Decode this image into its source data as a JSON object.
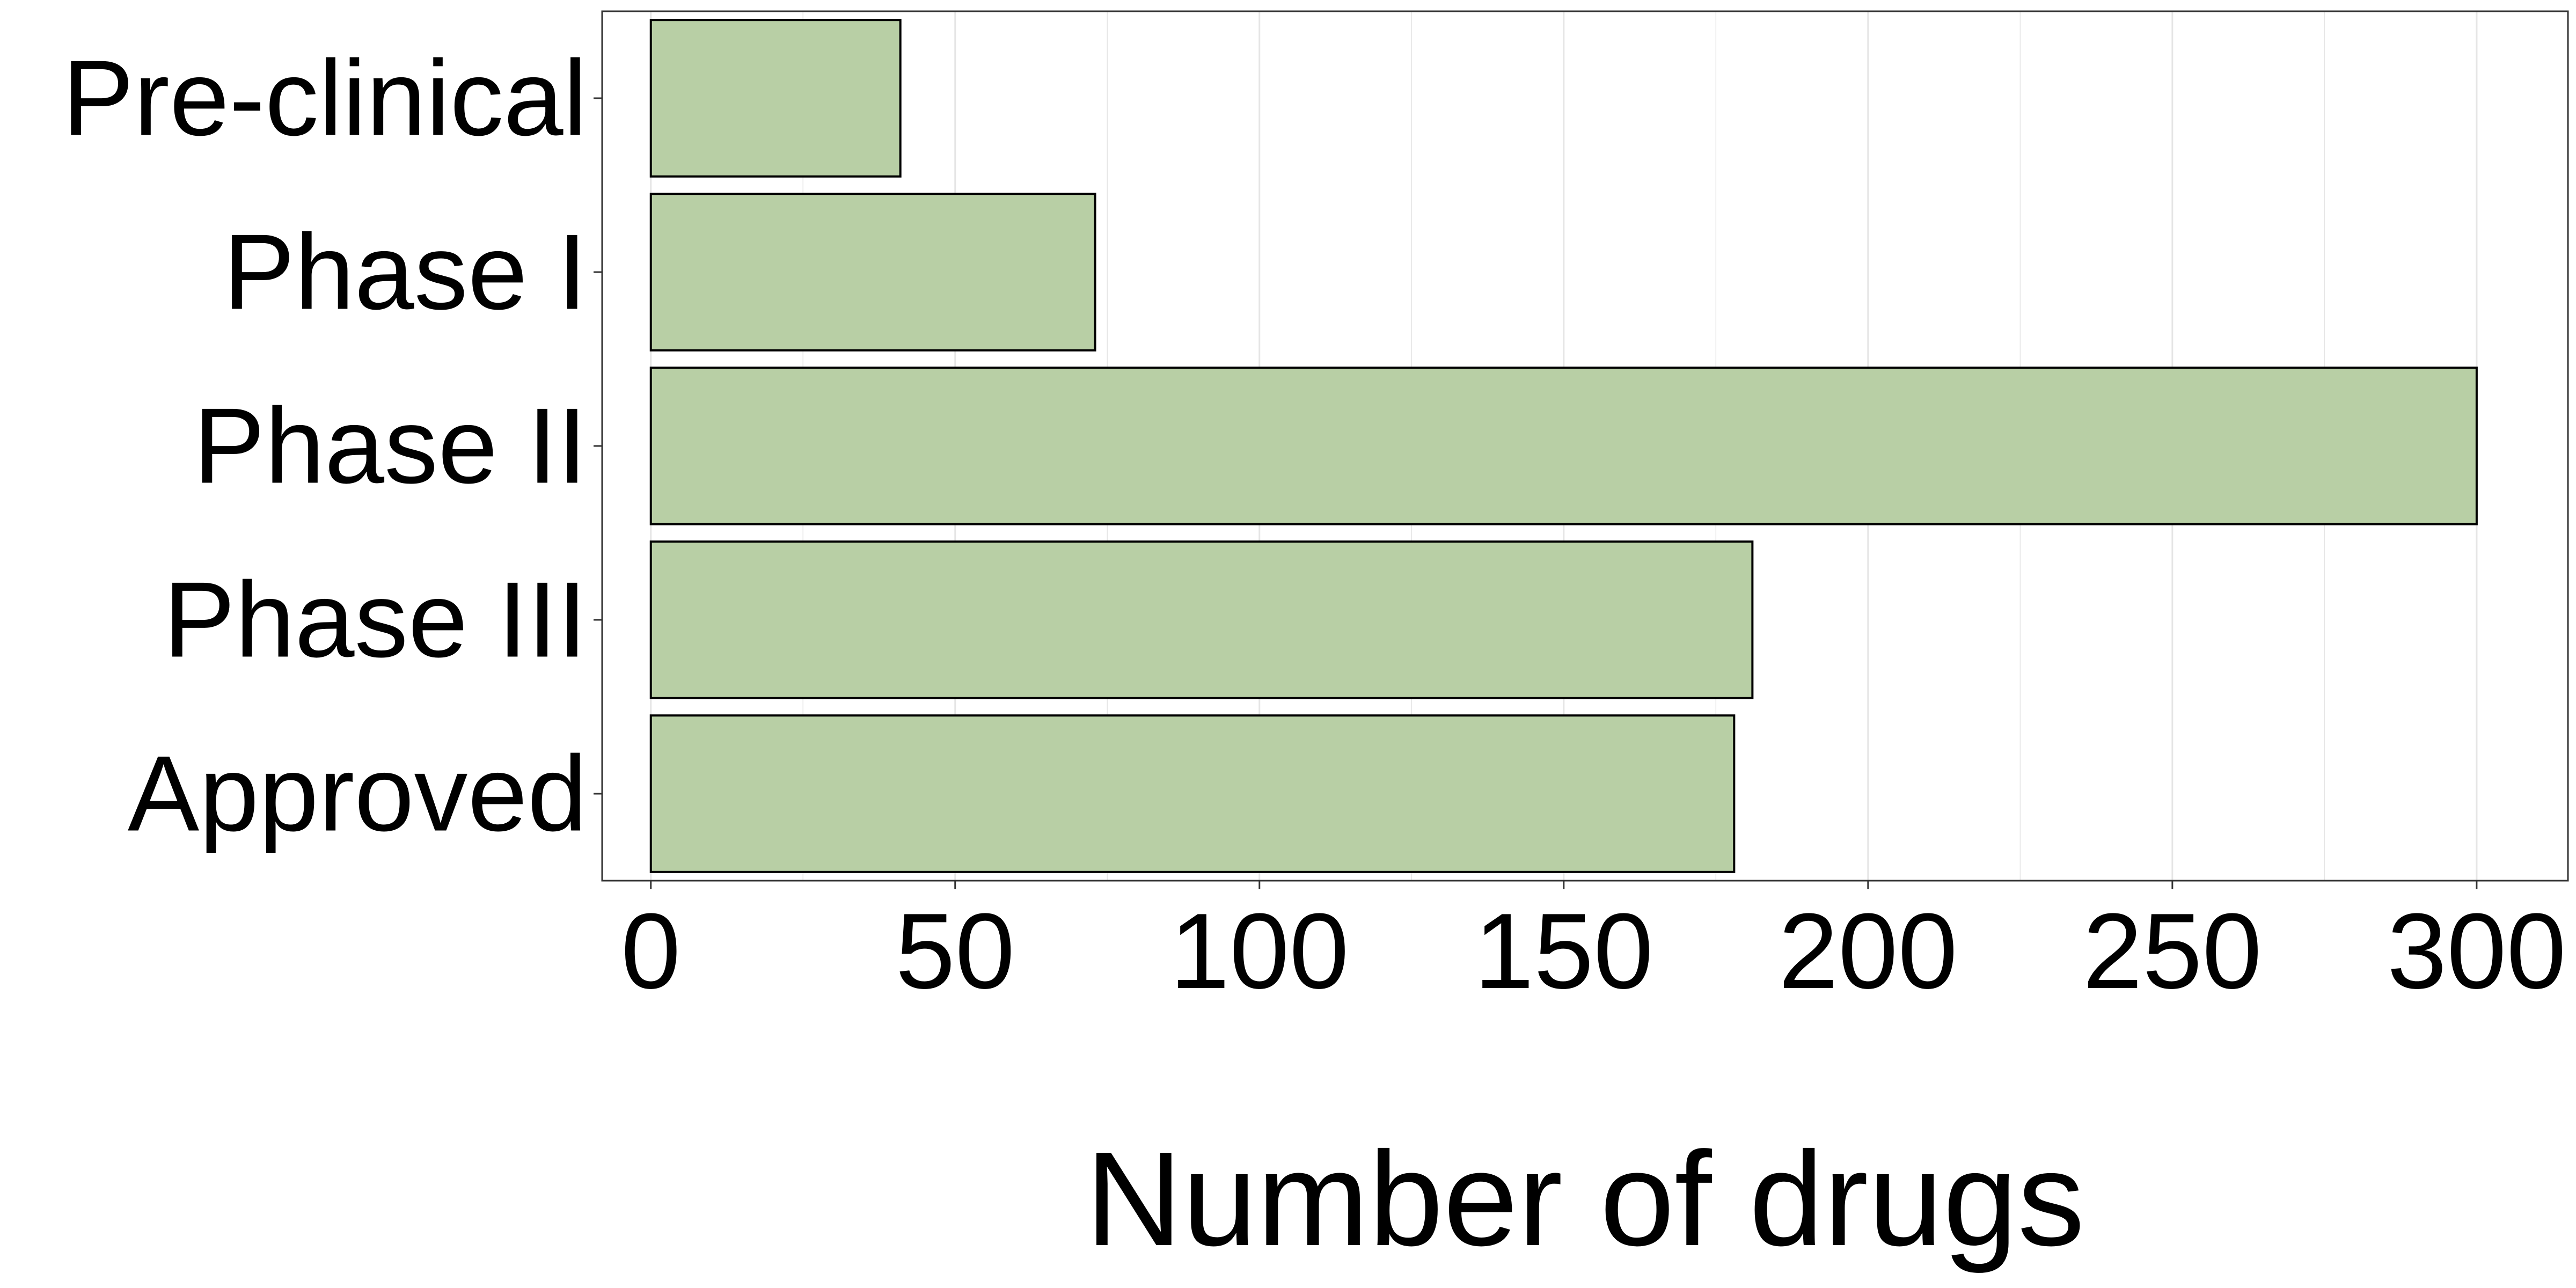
{
  "chart_data": {
    "type": "bar",
    "orientation": "horizontal",
    "categories": [
      "Pre-clinical",
      "Phase I",
      "Phase II",
      "Phase III",
      "Approved"
    ],
    "values": [
      41,
      73,
      300,
      181,
      178
    ],
    "title": "",
    "xlabel": "Number of drugs",
    "ylabel": "",
    "xlim": [
      -8,
      315
    ],
    "xticks": [
      0,
      50,
      100,
      150,
      200,
      250,
      300
    ],
    "grid": true,
    "legend": "none",
    "colors": {
      "bar_fill": "#b8cfa5",
      "bar_stroke": "#000000",
      "grid": "#e5e5e5",
      "panel_border": "#333333"
    }
  }
}
